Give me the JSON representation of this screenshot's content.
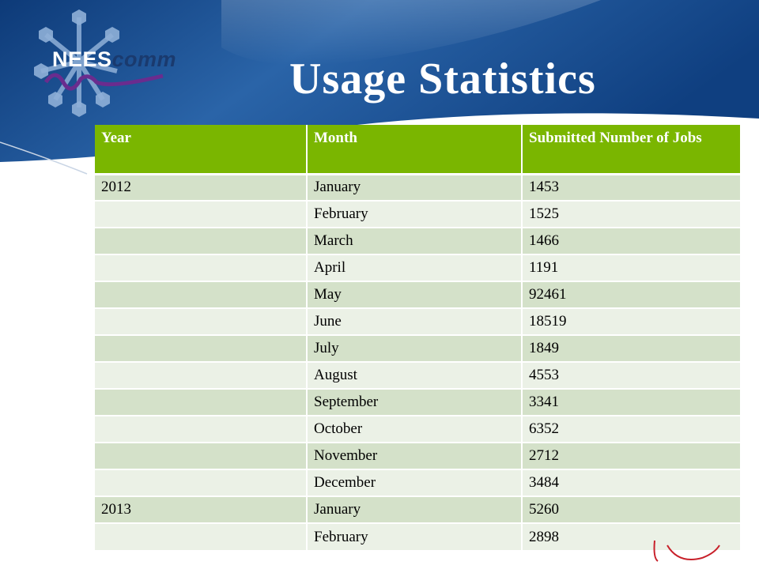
{
  "colors": {
    "header_blue_dark": "#0e3c7a",
    "header_blue_light": "#5a8fc8",
    "table_header_green": "#7ab600",
    "row_odd": "#d4e1c9",
    "row_even": "#ebf1e6",
    "logo_hex": "#8fb0d8"
  },
  "logo": {
    "text_nees": "NEES",
    "text_comm": "comm",
    "icon": "network-hexagon-logo"
  },
  "title": "Usage Statistics",
  "table": {
    "headers": [
      "Year",
      "Month",
      "Submitted Number of Jobs"
    ],
    "rows": [
      [
        "2012",
        "January",
        "1453"
      ],
      [
        "",
        "February",
        "1525"
      ],
      [
        "",
        "March",
        "1466"
      ],
      [
        "",
        "April",
        "1191"
      ],
      [
        "",
        "May",
        "92461"
      ],
      [
        "",
        "June",
        "18519"
      ],
      [
        "",
        "July",
        "1849"
      ],
      [
        "",
        "August",
        "4553"
      ],
      [
        "",
        "September",
        "3341"
      ],
      [
        "",
        "October",
        "6352"
      ],
      [
        "",
        "November",
        "2712"
      ],
      [
        "",
        "December",
        "3484"
      ],
      [
        "2013",
        "January",
        "5260"
      ],
      [
        "",
        "February",
        "2898"
      ]
    ]
  }
}
